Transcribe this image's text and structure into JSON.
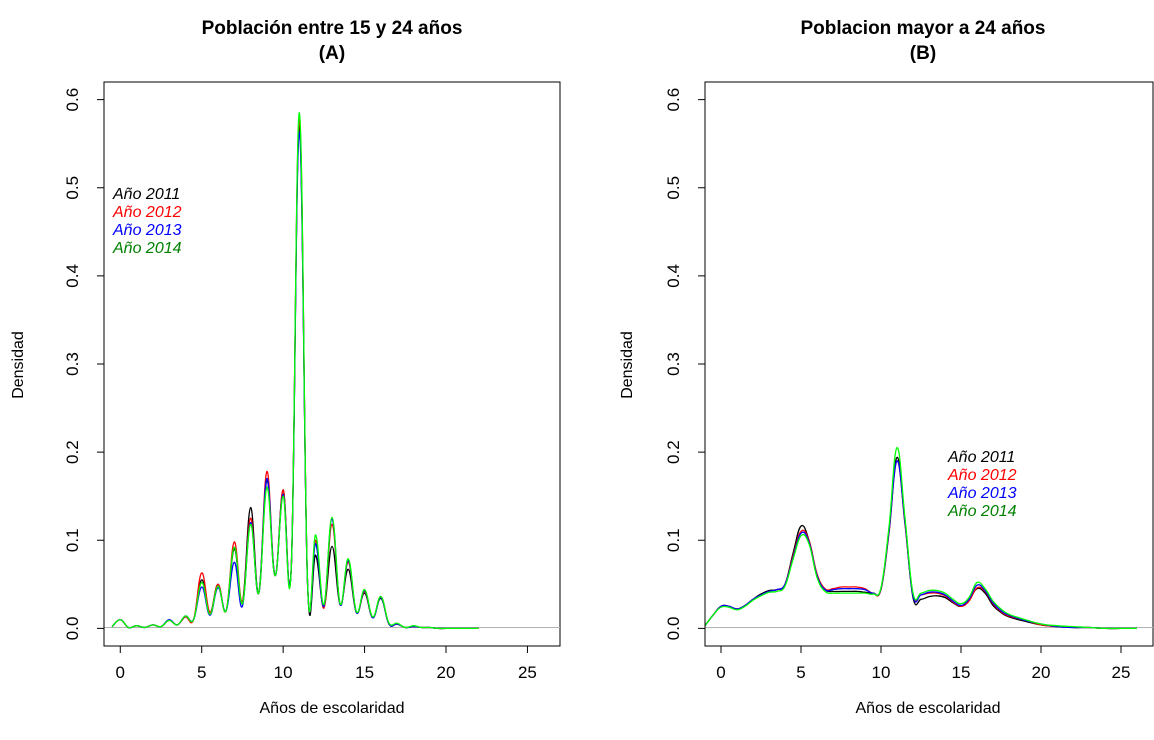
{
  "chart_data": [
    {
      "type": "line",
      "title": "Población entre 15 y 24 años",
      "subtitle": "(A)",
      "xlabel": "Años de escolaridad",
      "ylabel": "Densidad",
      "xlim": [
        -1,
        27
      ],
      "ylim": [
        -0.02,
        0.62
      ],
      "xticks": [
        "0",
        "5",
        "10",
        "15",
        "20",
        "25"
      ],
      "yticks": [
        "0.0",
        "0.1",
        "0.2",
        "0.3",
        "0.4",
        "0.5",
        "0.6"
      ],
      "baseline": 0,
      "legend": {
        "position": "upper-left",
        "items": [
          "Año 2011",
          "Año 2012",
          "Año 2013",
          "Año 2014"
        ]
      },
      "series": [
        {
          "name": "Año 2011",
          "color": "#000000",
          "x": [
            -0.5,
            0,
            0.5,
            1,
            1.5,
            2,
            2.5,
            3,
            3.5,
            4,
            4.5,
            5,
            5.5,
            6,
            6.5,
            7,
            7.5,
            8,
            8.5,
            9,
            9.5,
            10,
            10.5,
            11,
            11.5,
            12,
            12.5,
            13,
            13.5,
            14,
            14.5,
            15,
            15.5,
            16,
            16.5,
            17,
            17.5,
            18,
            18.5,
            19,
            19.5,
            20,
            21,
            22
          ],
          "y": [
            0.002,
            0.01,
            0.001,
            0.003,
            0.001,
            0.004,
            0.002,
            0.009,
            0.004,
            0.013,
            0.01,
            0.055,
            0.018,
            0.05,
            0.02,
            0.09,
            0.03,
            0.137,
            0.04,
            0.168,
            0.06,
            0.157,
            0.07,
            0.57,
            0.05,
            0.083,
            0.025,
            0.093,
            0.027,
            0.067,
            0.018,
            0.04,
            0.012,
            0.034,
            0.005,
            0.005,
            0.001,
            0.002,
            0.001,
            0.001,
            0,
            0,
            0,
            0
          ]
        },
        {
          "name": "Año 2012",
          "color": "#ff0000",
          "x": [
            -0.5,
            0,
            0.5,
            1,
            1.5,
            2,
            2.5,
            3,
            3.5,
            4,
            4.5,
            5,
            5.5,
            6,
            6.5,
            7,
            7.5,
            8,
            8.5,
            9,
            9.5,
            10,
            10.5,
            11,
            11.5,
            12,
            12.5,
            13,
            13.5,
            14,
            14.5,
            15,
            15.5,
            16,
            16.5,
            17,
            17.5,
            18,
            18.5,
            19,
            19.5,
            20,
            21,
            22
          ],
          "y": [
            0.002,
            0.01,
            0.001,
            0.003,
            0.001,
            0.004,
            0.002,
            0.009,
            0.004,
            0.013,
            0.01,
            0.063,
            0.018,
            0.05,
            0.02,
            0.098,
            0.03,
            0.125,
            0.04,
            0.178,
            0.06,
            0.157,
            0.07,
            0.578,
            0.05,
            0.1,
            0.023,
            0.118,
            0.027,
            0.075,
            0.018,
            0.042,
            0.012,
            0.036,
            0.005,
            0.005,
            0.001,
            0.002,
            0.001,
            0.001,
            0,
            0,
            0,
            0
          ]
        },
        {
          "name": "Año 2013",
          "color": "#0000ff",
          "x": [
            -0.5,
            0,
            0.5,
            1,
            1.5,
            2,
            2.5,
            3,
            3.5,
            4,
            4.5,
            5,
            5.5,
            6,
            6.5,
            7,
            7.5,
            8,
            8.5,
            9,
            9.5,
            10,
            10.5,
            11,
            11.5,
            12,
            12.5,
            13,
            13.5,
            14,
            14.5,
            15,
            15.5,
            16,
            16.5,
            17,
            17.5,
            18,
            18.5,
            19,
            19.5,
            20,
            21,
            22
          ],
          "y": [
            0.002,
            0.01,
            0.001,
            0.003,
            0.001,
            0.004,
            0.002,
            0.01,
            0.004,
            0.014,
            0.01,
            0.047,
            0.015,
            0.046,
            0.02,
            0.075,
            0.025,
            0.12,
            0.04,
            0.17,
            0.06,
            0.152,
            0.07,
            0.563,
            0.05,
            0.096,
            0.025,
            0.124,
            0.027,
            0.077,
            0.018,
            0.043,
            0.012,
            0.035,
            0.005,
            0.005,
            0.001,
            0.002,
            0.001,
            0.001,
            0,
            0,
            0,
            0
          ]
        },
        {
          "name": "Año 2014",
          "color": "#00ff00",
          "legend_color": "#008000",
          "x": [
            -0.5,
            0,
            0.5,
            1,
            1.5,
            2,
            2.5,
            3,
            3.5,
            4,
            4.5,
            5,
            5.5,
            6,
            6.5,
            7,
            7.5,
            8,
            8.5,
            9,
            9.5,
            10,
            10.5,
            11,
            11.5,
            12,
            12.5,
            13,
            13.5,
            14,
            14.5,
            15,
            15.5,
            16,
            16.5,
            17,
            17.5,
            18,
            18.5,
            19,
            19.5,
            20,
            21,
            22
          ],
          "y": [
            0.002,
            0.01,
            0.001,
            0.003,
            0.001,
            0.004,
            0.002,
            0.009,
            0.004,
            0.014,
            0.01,
            0.052,
            0.016,
            0.048,
            0.02,
            0.092,
            0.028,
            0.118,
            0.04,
            0.16,
            0.06,
            0.15,
            0.07,
            0.585,
            0.05,
            0.106,
            0.027,
            0.126,
            0.028,
            0.079,
            0.019,
            0.044,
            0.013,
            0.036,
            0.006,
            0.006,
            0.001,
            0.003,
            0.001,
            0.001,
            0,
            0,
            0,
            0
          ]
        }
      ]
    },
    {
      "type": "line",
      "title": "Poblacion mayor a 24 años",
      "subtitle": "(B)",
      "xlabel": "Años de escolaridad",
      "ylabel": "Densidad",
      "xlim": [
        -1,
        27
      ],
      "ylim": [
        -0.02,
        0.62
      ],
      "xticks": [
        "0",
        "5",
        "10",
        "15",
        "20",
        "25"
      ],
      "yticks": [
        "0.0",
        "0.1",
        "0.2",
        "0.3",
        "0.4",
        "0.5",
        "0.6"
      ],
      "baseline": 0,
      "legend": {
        "position": "center-right",
        "items": [
          "Año 2011",
          "Año 2012",
          "Año 2013",
          "Año 2014"
        ]
      },
      "series": [
        {
          "name": "Año 2011",
          "color": "#000000",
          "x": [
            -1,
            -0.5,
            0,
            0.5,
            1,
            1.5,
            2,
            2.5,
            3,
            3.5,
            4,
            4.5,
            5,
            5.5,
            6,
            6.5,
            7,
            7.5,
            8,
            8.5,
            9,
            9.5,
            10,
            10.5,
            11,
            11.5,
            12,
            12.5,
            13,
            13.5,
            14,
            14.5,
            15,
            15.5,
            16,
            16.5,
            17,
            17.5,
            18,
            19,
            20,
            21,
            22,
            23,
            24,
            25,
            26
          ],
          "y": [
            0.003,
            0.015,
            0.025,
            0.025,
            0.022,
            0.026,
            0.033,
            0.039,
            0.043,
            0.044,
            0.05,
            0.085,
            0.116,
            0.1,
            0.06,
            0.044,
            0.042,
            0.042,
            0.042,
            0.042,
            0.041,
            0.04,
            0.045,
            0.11,
            0.194,
            0.12,
            0.035,
            0.033,
            0.036,
            0.037,
            0.035,
            0.029,
            0.025,
            0.032,
            0.045,
            0.04,
            0.026,
            0.018,
            0.013,
            0.008,
            0.004,
            0.002,
            0.001,
            0.001,
            0,
            0,
            0
          ]
        },
        {
          "name": "Año 2012",
          "color": "#ff0000",
          "x": [
            -1,
            -0.5,
            0,
            0.5,
            1,
            1.5,
            2,
            2.5,
            3,
            3.5,
            4,
            4.5,
            5,
            5.5,
            6,
            6.5,
            7,
            7.5,
            8,
            8.5,
            9,
            9.5,
            10,
            10.5,
            11,
            11.5,
            12,
            12.5,
            13,
            13.5,
            14,
            14.5,
            15,
            15.5,
            16,
            16.5,
            17,
            17.5,
            18,
            19,
            20,
            21,
            22,
            23,
            24,
            25,
            26
          ],
          "y": [
            0.003,
            0.015,
            0.025,
            0.025,
            0.022,
            0.026,
            0.033,
            0.038,
            0.042,
            0.044,
            0.05,
            0.082,
            0.11,
            0.1,
            0.062,
            0.045,
            0.045,
            0.047,
            0.047,
            0.047,
            0.045,
            0.04,
            0.044,
            0.108,
            0.19,
            0.118,
            0.038,
            0.038,
            0.04,
            0.04,
            0.037,
            0.03,
            0.025,
            0.031,
            0.046,
            0.042,
            0.028,
            0.019,
            0.014,
            0.009,
            0.004,
            0.002,
            0.001,
            0.001,
            0,
            0,
            0
          ]
        },
        {
          "name": "Año 2013",
          "color": "#0000ff",
          "x": [
            -1,
            -0.5,
            0,
            0.5,
            1,
            1.5,
            2,
            2.5,
            3,
            3.5,
            4,
            4.5,
            5,
            5.5,
            6,
            6.5,
            7,
            7.5,
            8,
            8.5,
            9,
            9.5,
            10,
            10.5,
            11,
            11.5,
            12,
            12.5,
            13,
            13.5,
            14,
            14.5,
            15,
            15.5,
            16,
            16.5,
            17,
            17.5,
            18,
            19,
            20,
            21,
            22,
            23,
            24,
            25,
            26
          ],
          "y": [
            0.003,
            0.015,
            0.025,
            0.025,
            0.022,
            0.026,
            0.033,
            0.038,
            0.042,
            0.044,
            0.05,
            0.08,
            0.108,
            0.098,
            0.06,
            0.044,
            0.044,
            0.045,
            0.045,
            0.045,
            0.044,
            0.04,
            0.045,
            0.11,
            0.19,
            0.12,
            0.037,
            0.038,
            0.041,
            0.041,
            0.038,
            0.031,
            0.026,
            0.033,
            0.049,
            0.043,
            0.029,
            0.02,
            0.015,
            0.009,
            0.005,
            0.002,
            0.001,
            0.001,
            0,
            0,
            0
          ]
        },
        {
          "name": "Año 2014",
          "color": "#00ff00",
          "legend_color": "#008000",
          "x": [
            -1,
            -0.5,
            0,
            0.5,
            1,
            1.5,
            2,
            2.5,
            3,
            3.5,
            4,
            4.5,
            5,
            5.5,
            6,
            6.5,
            7,
            7.5,
            8,
            8.5,
            9,
            9.5,
            10,
            10.5,
            11,
            11.5,
            12,
            12.5,
            13,
            13.5,
            14,
            14.5,
            15,
            15.5,
            16,
            16.5,
            17,
            17.5,
            18,
            19,
            20,
            21,
            22,
            23,
            24,
            25,
            26
          ],
          "y": [
            0.003,
            0.015,
            0.024,
            0.024,
            0.021,
            0.025,
            0.032,
            0.037,
            0.041,
            0.042,
            0.048,
            0.078,
            0.105,
            0.096,
            0.058,
            0.042,
            0.04,
            0.04,
            0.04,
            0.04,
            0.04,
            0.039,
            0.046,
            0.115,
            0.205,
            0.125,
            0.04,
            0.04,
            0.043,
            0.043,
            0.04,
            0.033,
            0.028,
            0.035,
            0.052,
            0.045,
            0.031,
            0.022,
            0.016,
            0.01,
            0.005,
            0.003,
            0.002,
            0.001,
            0,
            0,
            0
          ]
        }
      ]
    }
  ]
}
